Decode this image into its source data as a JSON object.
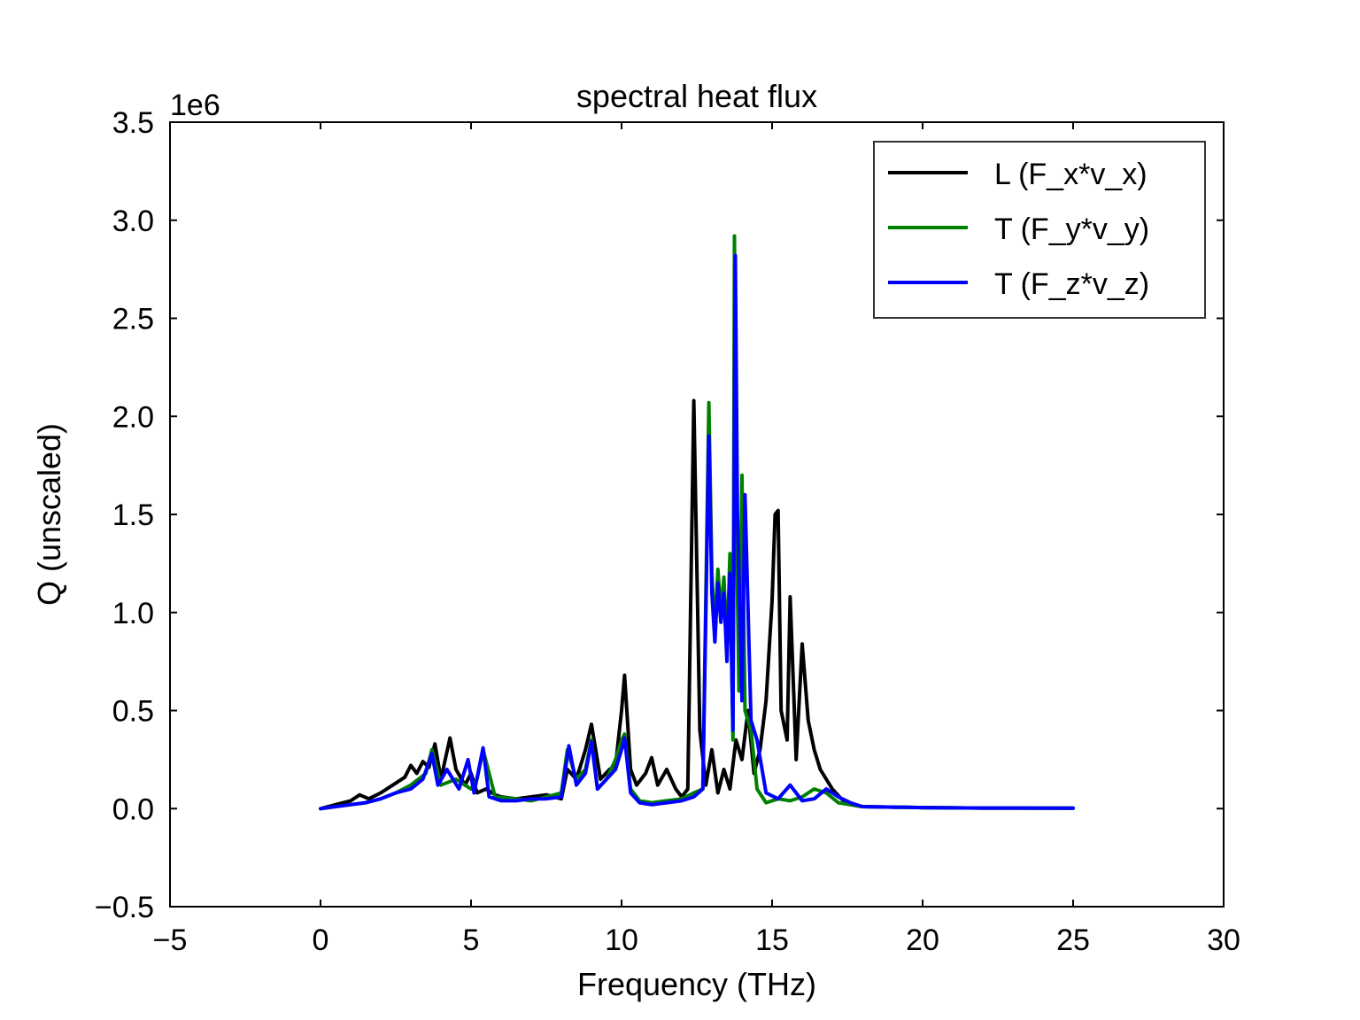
{
  "chart_data": {
    "type": "line",
    "title": "spectral heat flux",
    "xlabel": "Frequency (THz)",
    "ylabel": "Q (unscaled)",
    "y_offset_label": "1e6",
    "xlim": [
      -5,
      30
    ],
    "ylim": [
      -0.5,
      3.5
    ],
    "x_ticks": [
      -5,
      0,
      5,
      10,
      15,
      20,
      25,
      30
    ],
    "x_tick_labels": [
      "−5",
      "0",
      "5",
      "10",
      "15",
      "20",
      "25",
      "30"
    ],
    "y_ticks": [
      -0.5,
      0.0,
      0.5,
      1.0,
      1.5,
      2.0,
      2.5,
      3.0,
      3.5
    ],
    "y_tick_labels": [
      "−0.5",
      "0.0",
      "0.5",
      "1.0",
      "1.5",
      "2.0",
      "2.5",
      "3.0",
      "3.5"
    ],
    "grid": false,
    "legend_position": "top-right",
    "series": [
      {
        "name": "L (F_x*v_x)",
        "color": "#000000",
        "x": [
          0.0,
          0.5,
          1.0,
          1.3,
          1.6,
          2.0,
          2.4,
          2.8,
          3.0,
          3.2,
          3.4,
          3.6,
          3.8,
          4.0,
          4.3,
          4.5,
          4.8,
          5.0,
          5.2,
          5.5,
          5.8,
          6.0,
          6.5,
          7.0,
          7.5,
          8.0,
          8.2,
          8.5,
          8.8,
          9.0,
          9.3,
          9.6,
          9.8,
          10.0,
          10.1,
          10.3,
          10.5,
          10.8,
          11.0,
          11.2,
          11.5,
          11.8,
          12.0,
          12.2,
          12.4,
          12.6,
          12.8,
          13.0,
          13.2,
          13.4,
          13.6,
          13.8,
          14.0,
          14.2,
          14.4,
          14.6,
          14.8,
          15.0,
          15.1,
          15.2,
          15.3,
          15.5,
          15.6,
          15.8,
          16.0,
          16.2,
          16.4,
          16.6,
          16.8,
          17.0,
          17.3,
          17.6,
          18.0,
          20.0,
          22.0,
          25.0
        ],
        "y": [
          0.0,
          0.02,
          0.04,
          0.07,
          0.05,
          0.08,
          0.12,
          0.16,
          0.22,
          0.18,
          0.24,
          0.21,
          0.33,
          0.15,
          0.36,
          0.2,
          0.12,
          0.18,
          0.08,
          0.1,
          0.07,
          0.06,
          0.05,
          0.06,
          0.07,
          0.05,
          0.2,
          0.15,
          0.3,
          0.43,
          0.15,
          0.2,
          0.22,
          0.5,
          0.68,
          0.2,
          0.12,
          0.18,
          0.26,
          0.12,
          0.2,
          0.1,
          0.06,
          0.1,
          2.08,
          0.4,
          0.12,
          0.3,
          0.08,
          0.2,
          0.1,
          0.35,
          0.25,
          0.5,
          0.18,
          0.3,
          0.55,
          1.06,
          1.5,
          1.52,
          0.5,
          0.35,
          1.08,
          0.25,
          0.84,
          0.45,
          0.3,
          0.2,
          0.15,
          0.1,
          0.05,
          0.02,
          0.01,
          0.005,
          0.003,
          0.002
        ]
      },
      {
        "name": "T (F_y*v_y)",
        "color": "#008000",
        "x": [
          0.0,
          0.5,
          1.0,
          1.5,
          2.0,
          2.5,
          3.0,
          3.5,
          3.7,
          4.0,
          4.5,
          5.0,
          5.2,
          5.4,
          5.8,
          6.5,
          7.0,
          7.5,
          8.0,
          8.2,
          8.5,
          8.8,
          9.0,
          9.2,
          9.5,
          9.8,
          10.0,
          10.1,
          10.3,
          10.6,
          11.0,
          11.5,
          12.0,
          12.4,
          12.7,
          12.9,
          13.0,
          13.1,
          13.2,
          13.3,
          13.4,
          13.5,
          13.6,
          13.7,
          13.75,
          13.8,
          13.9,
          14.0,
          14.1,
          14.3,
          14.5,
          14.8,
          15.2,
          15.6,
          16.0,
          16.4,
          16.8,
          17.2,
          17.6,
          18.0,
          20.0,
          22.0,
          25.0
        ],
        "y": [
          0.0,
          0.01,
          0.02,
          0.03,
          0.05,
          0.08,
          0.12,
          0.18,
          0.3,
          0.12,
          0.15,
          0.1,
          0.15,
          0.3,
          0.06,
          0.05,
          0.04,
          0.06,
          0.08,
          0.3,
          0.15,
          0.2,
          0.35,
          0.1,
          0.15,
          0.25,
          0.35,
          0.38,
          0.1,
          0.04,
          0.03,
          0.04,
          0.05,
          0.08,
          0.1,
          2.07,
          1.2,
          0.9,
          1.22,
          1.0,
          1.18,
          0.8,
          1.3,
          0.35,
          2.92,
          1.6,
          0.6,
          1.7,
          0.5,
          0.4,
          0.1,
          0.03,
          0.05,
          0.04,
          0.06,
          0.1,
          0.08,
          0.03,
          0.02,
          0.01,
          0.005,
          0.003,
          0.002
        ]
      },
      {
        "name": "T (F_z*v_z)",
        "color": "#0000ff",
        "x": [
          0.0,
          0.5,
          1.0,
          1.5,
          2.0,
          2.5,
          3.0,
          3.4,
          3.7,
          3.9,
          4.2,
          4.6,
          4.9,
          5.1,
          5.4,
          5.6,
          6.0,
          6.5,
          7.0,
          7.5,
          8.0,
          8.25,
          8.5,
          8.8,
          9.0,
          9.2,
          9.5,
          9.8,
          10.0,
          10.1,
          10.3,
          10.6,
          11.0,
          11.5,
          12.0,
          12.4,
          12.7,
          12.9,
          13.0,
          13.1,
          13.2,
          13.3,
          13.4,
          13.5,
          13.6,
          13.7,
          13.78,
          13.85,
          14.0,
          14.1,
          14.3,
          14.5,
          14.8,
          15.2,
          15.6,
          16.0,
          16.4,
          16.8,
          17.2,
          17.6,
          18.0,
          20.0,
          22.0,
          25.0
        ],
        "y": [
          0.0,
          0.01,
          0.02,
          0.03,
          0.05,
          0.08,
          0.1,
          0.15,
          0.28,
          0.12,
          0.2,
          0.1,
          0.25,
          0.08,
          0.31,
          0.06,
          0.04,
          0.04,
          0.05,
          0.05,
          0.06,
          0.32,
          0.12,
          0.18,
          0.34,
          0.1,
          0.15,
          0.2,
          0.3,
          0.36,
          0.08,
          0.03,
          0.02,
          0.03,
          0.04,
          0.06,
          0.1,
          1.9,
          1.1,
          0.85,
          1.15,
          0.95,
          1.1,
          0.75,
          1.2,
          0.4,
          2.82,
          1.5,
          0.55,
          1.6,
          0.45,
          0.35,
          0.08,
          0.05,
          0.12,
          0.04,
          0.05,
          0.1,
          0.06,
          0.03,
          0.01,
          0.005,
          0.003,
          0.002
        ]
      }
    ]
  }
}
